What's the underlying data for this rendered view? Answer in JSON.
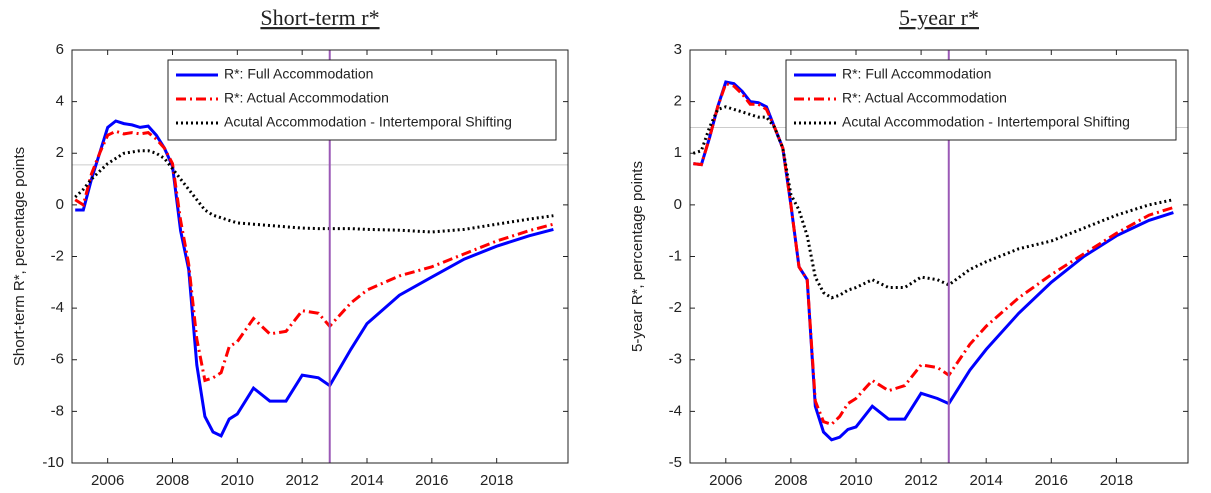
{
  "chart_data": [
    {
      "type": "line",
      "title": "Short-term r*",
      "ylabel": "Short-term R*, percentage points",
      "x": [
        2005,
        2005.25,
        2005.5,
        2005.75,
        2006,
        2006.25,
        2006.5,
        2006.75,
        2007,
        2007.25,
        2007.5,
        2007.75,
        2008,
        2008.25,
        2008.5,
        2008.75,
        2009,
        2009.25,
        2009.5,
        2009.75,
        2010,
        2010.5,
        2011,
        2011.5,
        2012,
        2012.5,
        2012.85,
        2013.5,
        2014,
        2015,
        2016,
        2017,
        2018,
        2019,
        2019.75
      ],
      "series": [
        {
          "name": "R*: Full Accommodation",
          "color": "#0000ff",
          "dash": "solid",
          "values": [
            -0.2,
            -0.2,
            1.0,
            2.0,
            3.0,
            3.25,
            3.15,
            3.1,
            3.0,
            3.05,
            2.7,
            2.2,
            1.5,
            -1.0,
            -2.5,
            -6.2,
            -8.2,
            -8.8,
            -8.95,
            -8.3,
            -8.1,
            -7.1,
            -7.6,
            -7.6,
            -6.6,
            -6.7,
            -7.0,
            -5.6,
            -4.6,
            -3.5,
            -2.8,
            -2.1,
            -1.6,
            -1.2,
            -0.95
          ]
        },
        {
          "name": "R*: Actual Accommodation",
          "color": "#ff0000",
          "dash": "dashdot",
          "values": [
            0.2,
            0.0,
            1.2,
            2.0,
            2.7,
            2.85,
            2.75,
            2.8,
            2.75,
            2.8,
            2.55,
            2.2,
            1.6,
            -0.6,
            -2.3,
            -5.2,
            -6.8,
            -6.7,
            -6.5,
            -5.5,
            -5.3,
            -4.4,
            -5.0,
            -4.9,
            -4.1,
            -4.2,
            -4.7,
            -3.8,
            -3.3,
            -2.75,
            -2.4,
            -1.9,
            -1.4,
            -1.0,
            -0.75
          ]
        },
        {
          "name": "Acutal Accommodation - Intertemporal Shifting",
          "color": "#000000",
          "dash": "dotted",
          "values": [
            0.3,
            0.6,
            1.0,
            1.3,
            1.6,
            1.8,
            2.0,
            2.05,
            2.1,
            2.1,
            2.0,
            1.8,
            1.4,
            1.0,
            0.6,
            0.2,
            -0.2,
            -0.4,
            -0.5,
            -0.6,
            -0.7,
            -0.75,
            -0.8,
            -0.85,
            -0.9,
            -0.92,
            -0.92,
            -0.92,
            -0.95,
            -0.98,
            -1.05,
            -0.95,
            -0.75,
            -0.55,
            -0.42
          ]
        }
      ],
      "xlim": [
        2004.9,
        2020.2
      ],
      "xticks": [
        2006,
        2008,
        2010,
        2012,
        2014,
        2016,
        2018
      ],
      "ylim": [
        -10,
        6
      ],
      "yticks": [
        -10,
        -8,
        -6,
        -4,
        -2,
        0,
        2,
        4,
        6
      ],
      "vline": {
        "x": 2012.85,
        "color": "#9b59b6"
      },
      "hline": {
        "y": 1.55,
        "color": "#cccccc"
      },
      "legend": "top"
    },
    {
      "type": "line",
      "title": "5-year r*",
      "ylabel": "5-year R*, percentage points",
      "x": [
        2005,
        2005.25,
        2005.5,
        2005.75,
        2006,
        2006.25,
        2006.5,
        2006.75,
        2007,
        2007.25,
        2007.5,
        2007.75,
        2008,
        2008.25,
        2008.5,
        2008.75,
        2009,
        2009.25,
        2009.5,
        2009.75,
        2010,
        2010.5,
        2011,
        2011.5,
        2012,
        2012.5,
        2012.85,
        2013.5,
        2014,
        2015,
        2016,
        2017,
        2018,
        2019,
        2019.75
      ],
      "series": [
        {
          "name": "R*: Full Accommodation",
          "color": "#0000ff",
          "dash": "solid",
          "values": [
            0.8,
            0.78,
            1.3,
            1.9,
            2.38,
            2.35,
            2.2,
            2.0,
            1.98,
            1.9,
            1.5,
            1.1,
            0.0,
            -1.2,
            -1.45,
            -3.9,
            -4.4,
            -4.55,
            -4.5,
            -4.35,
            -4.3,
            -3.9,
            -4.15,
            -4.15,
            -3.65,
            -3.75,
            -3.85,
            -3.2,
            -2.8,
            -2.1,
            -1.5,
            -1.0,
            -0.6,
            -0.3,
            -0.15
          ]
        },
        {
          "name": "R*: Actual Accommodation",
          "color": "#ff0000",
          "dash": "dashdot",
          "values": [
            0.8,
            0.78,
            1.3,
            1.9,
            2.35,
            2.3,
            2.15,
            1.95,
            1.95,
            1.85,
            1.5,
            1.1,
            0.0,
            -1.2,
            -1.45,
            -3.8,
            -4.2,
            -4.25,
            -4.1,
            -3.85,
            -3.75,
            -3.4,
            -3.6,
            -3.5,
            -3.1,
            -3.15,
            -3.3,
            -2.7,
            -2.35,
            -1.8,
            -1.35,
            -0.95,
            -0.55,
            -0.2,
            -0.05
          ]
        },
        {
          "name": "Acutal Accommodation - Intertemporal Shifting",
          "color": "#000000",
          "dash": "dotted",
          "values": [
            1.0,
            1.05,
            1.5,
            1.85,
            1.9,
            1.85,
            1.8,
            1.75,
            1.7,
            1.7,
            1.5,
            1.1,
            0.2,
            -0.1,
            -0.6,
            -1.4,
            -1.7,
            -1.8,
            -1.75,
            -1.65,
            -1.6,
            -1.45,
            -1.6,
            -1.6,
            -1.4,
            -1.45,
            -1.55,
            -1.25,
            -1.1,
            -0.85,
            -0.7,
            -0.45,
            -0.2,
            0.0,
            0.1
          ]
        }
      ],
      "xlim": [
        2004.9,
        2020.2
      ],
      "xticks": [
        2006,
        2008,
        2010,
        2012,
        2014,
        2016,
        2018
      ],
      "ylim": [
        -5,
        3
      ],
      "yticks": [
        -5,
        -4,
        -3,
        -2,
        -1,
        0,
        1,
        2,
        3
      ],
      "vline": {
        "x": 2012.85,
        "color": "#9b59b6"
      },
      "hline": {
        "y": 1.5,
        "color": "#cccccc"
      },
      "legend": "top"
    }
  ]
}
